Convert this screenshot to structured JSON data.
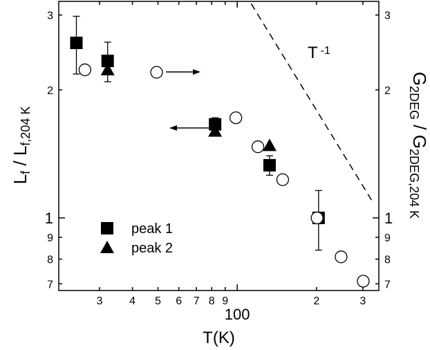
{
  "chart_data": {
    "type": "scatter",
    "xlabel": "T(K)",
    "ylabel": [
      "L",
      "f",
      " / L",
      "f,204 K"
    ],
    "y2label": [
      "G",
      "2DEG",
      " / G",
      "2DEG,204 K"
    ],
    "log_x": true,
    "log_y": true,
    "xlim": [
      21,
      345
    ],
    "ylim": [
      0.675,
      3.23
    ],
    "y2lim": [
      0.675,
      3.23
    ],
    "xticks": [
      {
        "value": 30,
        "label": "3"
      },
      {
        "value": 40,
        "label": "4"
      },
      {
        "value": 50,
        "label": "5"
      },
      {
        "value": 60,
        "label": "6"
      },
      {
        "value": 70,
        "label": "7"
      },
      {
        "value": 80,
        "label": "8"
      },
      {
        "value": 90,
        "label": "9"
      },
      100,
      {
        "value": 200,
        "label": "2"
      },
      {
        "value": 300,
        "label": "3"
      }
    ],
    "yticks": [
      {
        "value": 0.7,
        "label": "7"
      },
      {
        "value": 0.8,
        "label": "8"
      },
      {
        "value": 0.9,
        "label": "9"
      },
      1,
      2,
      3
    ],
    "y2ticks": [
      {
        "value": 0.7,
        "label": "7"
      },
      {
        "value": 0.8,
        "label": "8"
      },
      {
        "value": 0.9,
        "label": "9"
      },
      1,
      2,
      3
    ],
    "series": [
      {
        "name": "peak 1",
        "marker": "square",
        "color": "#000000",
        "x": [
          24.5,
          32.2,
          82.4,
          132.7,
          203.7
        ],
        "y": [
          2.58,
          2.34,
          1.66,
          1.33,
          1.0
        ],
        "errors": [
          0.4,
          0.25,
          0.06,
          0.07,
          0.16
        ]
      },
      {
        "name": "peak 2",
        "marker": "triangle",
        "color": "#000000",
        "x": [
          32.2,
          82.4,
          132.7
        ],
        "y": [
          2.23,
          1.6,
          1.48
        ]
      },
      {
        "marker": "circle-open",
        "color": "#000000",
        "axis": "y2",
        "x": [
          26.4,
          49.4,
          98.8,
          119.8,
          148.8,
          201,
          248,
          301
        ],
        "y": [
          2.23,
          2.2,
          1.72,
          1.47,
          1.23,
          1.0,
          0.81,
          0.71
        ]
      }
    ],
    "line": {
      "style": "dashed",
      "color": "#000000",
      "x": [
        113,
        330
      ],
      "y": [
        3.19,
        1.08
      ]
    },
    "annotation": [
      "T",
      "-1"
    ],
    "legend": "lower left"
  }
}
